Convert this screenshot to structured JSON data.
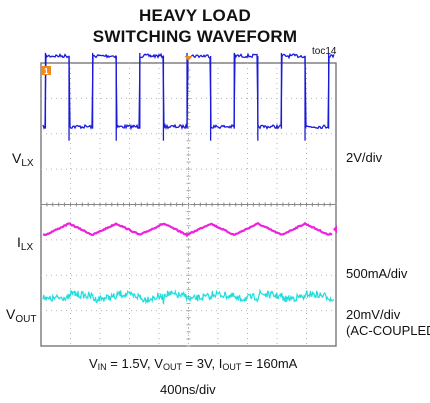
{
  "title_line1": "HEAVY LOAD",
  "title_line2": "SWITCHING WAVEFORM",
  "figure_id": "toc14",
  "channels": {
    "vlx": {
      "label_main": "V",
      "label_sub": "LX",
      "scale": "2V/div",
      "color": "#1a1adb"
    },
    "ilx": {
      "label_main": "I",
      "label_sub": "LX",
      "scale": "500mA/div",
      "color": "#ee22dd"
    },
    "vout": {
      "label_main": "V",
      "label_sub": "OUT",
      "scale": "20mV/div",
      "coupling": "(AC-COUPLED)",
      "color": "#22dddd"
    }
  },
  "conditions": {
    "vin_main": "V",
    "vin_sub": "IN",
    "vin_val": " = 1.5V, ",
    "vout_main": "V",
    "vout_sub": "OUT",
    "vout_val": " = 3V, ",
    "iout_main": "I",
    "iout_sub": "OUT",
    "iout_val": " = 160mA"
  },
  "timebase": "400ns/div",
  "chart_data": {
    "type": "line",
    "grid": true,
    "x_divisions": 10,
    "y_divisions": 8,
    "x_unit": "div",
    "series": [
      {
        "name": "VLX",
        "waveform": "square",
        "period_div": 1.6,
        "high_fraction": 0.5,
        "high_div": 2.0,
        "low_div": 0.0,
        "ground_div": 2.2
      },
      {
        "name": "ILX",
        "waveform": "triangle",
        "period_div": 1.6,
        "center_div": -0.7,
        "pp_div": 0.32
      },
      {
        "name": "VOUT",
        "waveform": "ripple",
        "period_div": 1.6,
        "center_div": -2.6,
        "pp_div": 0.3
      }
    ]
  }
}
